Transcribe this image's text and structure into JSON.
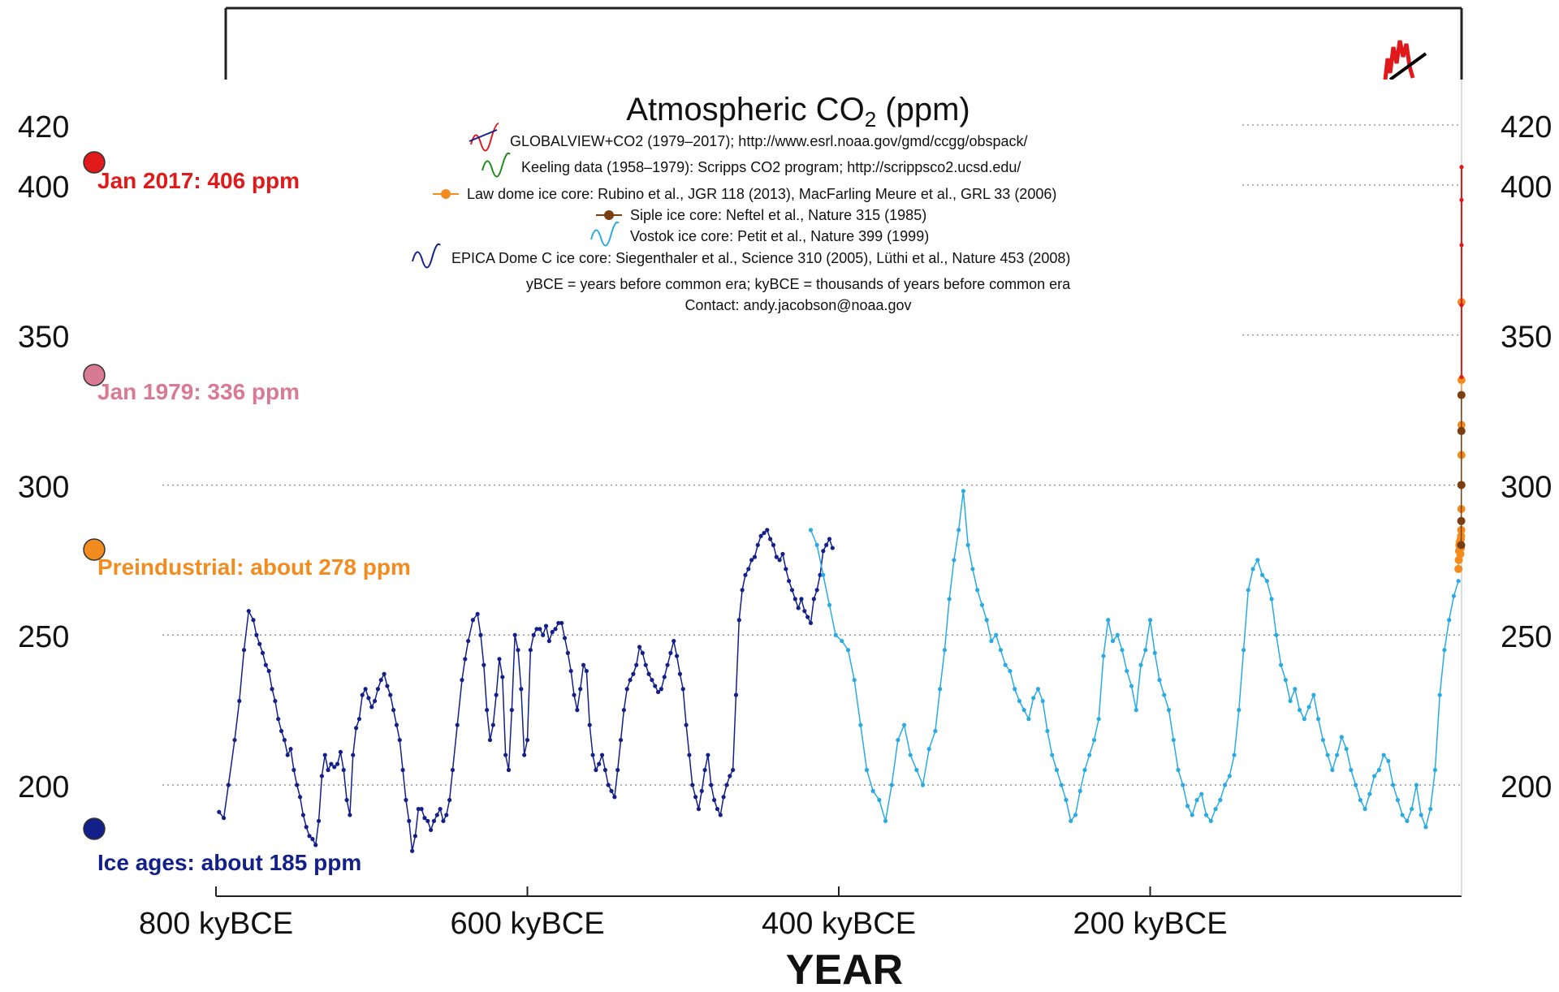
{
  "chart_data": {
    "type": "line",
    "title": "Atmospheric CO",
    "title_sub": "2",
    "title_unit": " (ppm)",
    "xlabel": "YEAR",
    "ylabel": "",
    "ylim": [
      175,
      420
    ],
    "xlim": [
      800,
      0
    ],
    "x_unit": "kyBCE",
    "y_ticks": [
      "420",
      "400",
      "350",
      "300",
      "250",
      "200"
    ],
    "y_tick_values": [
      420,
      400,
      350,
      300,
      250,
      200
    ],
    "gridlines": [
      420,
      400,
      350,
      300,
      250,
      200
    ],
    "x_ticks": [
      "800 kyBCE",
      "600 kyBCE",
      "400 kyBCE",
      "200 kyBCE"
    ],
    "x_tick_values": [
      800,
      600,
      400,
      200
    ],
    "grid": "dotted horizontal",
    "legend_placement": "top-center",
    "legend": [
      {
        "text": "GLOBALVIEW+CO2 (1979–2017); http://www.esrl.noaa.gov/gmd/ccgg/obspack/",
        "color": "#e0191b",
        "marker": "wave2"
      },
      {
        "text": "Keeling data (1958–1979): Scripps CO2 program; http://scrippsco2.ucsd.edu/",
        "color": "#1e8c1e",
        "marker": "wave"
      },
      {
        "text": "Law dome ice core:  Rubino et al., JGR 118 (2013), MacFarling Meure et al., GRL 33 (2006)",
        "color": "#f28c1f",
        "marker": "dot"
      },
      {
        "text": "Siple ice core:  Neftel et al., Nature 315 (1985)",
        "color": "#7a3e12",
        "marker": "dot"
      },
      {
        "text": "Vostok ice core:  Petit et al., Nature 399 (1999)",
        "color": "#29abe2",
        "marker": "wave"
      },
      {
        "text": "EPICA Dome C ice core:  Siegenthaler et al., Science 310 (2005), Lüthi et al., Nature 453 (2008)",
        "color": "#14208a",
        "marker": "wave"
      }
    ],
    "notes": [
      "yBCE = years before common era; kyBCE = thousands of years before common era",
      "Contact: andy.jacobson@noaa.gov"
    ],
    "annotations": [
      {
        "text": "Jan 2017: 406 ppm",
        "value": 406,
        "color": "#e0191b"
      },
      {
        "text": "Jan 1979: 336 ppm",
        "value": 336,
        "color": "#d97a93"
      },
      {
        "text": "Preindustrial: about 278 ppm",
        "value": 278,
        "color": "#f28c1f"
      },
      {
        "text": "Ice ages: about 185 ppm",
        "value": 185,
        "color": "#14208a"
      }
    ],
    "series": [
      {
        "name": "EPICA Dome C ice core",
        "color": "#14208a",
        "x": [
          798,
          795,
          792,
          788,
          785,
          782,
          779,
          776,
          774,
          772,
          770,
          768,
          766,
          764,
          762,
          760,
          758,
          756,
          754,
          752,
          750,
          748,
          746,
          744,
          742,
          740,
          738,
          736,
          734,
          732,
          730,
          728,
          726,
          724,
          722,
          720,
          718,
          716,
          714,
          712,
          710,
          708,
          706,
          704,
          702,
          700,
          698,
          696,
          694,
          692,
          690,
          688,
          686,
          684,
          682,
          680,
          678,
          676,
          674,
          672,
          670,
          668,
          666,
          664,
          662,
          660,
          658,
          656,
          654,
          652,
          650,
          648,
          645,
          642,
          640,
          638,
          635,
          632,
          630,
          628,
          626,
          624,
          622,
          620,
          618,
          616,
          614,
          612,
          610,
          608,
          606,
          604,
          602,
          600,
          598,
          596,
          594,
          592,
          590,
          588,
          586,
          584,
          582,
          580,
          578,
          576,
          574,
          572,
          570,
          568,
          566,
          564,
          562,
          560,
          558,
          556,
          554,
          552,
          550,
          548,
          546,
          544,
          542,
          540,
          538,
          536,
          534,
          532,
          530,
          528,
          526,
          524,
          522,
          520,
          518,
          516,
          514,
          512,
          510,
          508,
          506,
          504,
          502,
          500,
          498,
          496,
          494,
          492,
          490,
          488,
          486,
          484,
          482,
          480,
          478,
          476,
          474,
          472,
          470,
          468,
          466,
          464,
          462,
          460,
          458,
          456,
          454,
          452,
          450,
          448,
          446,
          444,
          442,
          440,
          438,
          436,
          434,
          432,
          430,
          428,
          426,
          424,
          422,
          420,
          418,
          416,
          414,
          412,
          410,
          408,
          406,
          404
        ],
        "y": [
          191,
          189,
          200,
          215,
          228,
          245,
          258,
          255,
          250,
          247,
          244,
          240,
          238,
          232,
          228,
          222,
          218,
          215,
          210,
          212,
          205,
          200,
          196,
          190,
          186,
          183,
          182,
          180,
          188,
          203,
          210,
          205,
          207,
          206,
          207,
          211,
          205,
          195,
          190,
          210,
          219,
          222,
          230,
          232,
          229,
          226,
          228,
          232,
          235,
          237,
          233,
          230,
          225,
          220,
          215,
          205,
          195,
          188,
          178,
          183,
          192,
          192,
          189,
          188,
          185,
          188,
          190,
          192,
          188,
          190,
          195,
          205,
          220,
          235,
          242,
          248,
          255,
          257,
          250,
          240,
          225,
          215,
          220,
          230,
          242,
          236,
          210,
          205,
          225,
          250,
          245,
          232,
          210,
          215,
          245,
          250,
          252,
          252,
          250,
          253,
          248,
          251,
          252,
          254,
          254,
          249,
          244,
          238,
          230,
          225,
          232,
          240,
          238,
          220,
          210,
          205,
          207,
          210,
          205,
          200,
          198,
          196,
          205,
          215,
          225,
          232,
          235,
          237,
          240,
          246,
          244,
          240,
          237,
          235,
          233,
          231,
          232,
          236,
          240,
          244,
          248,
          243,
          237,
          232,
          220,
          210,
          200,
          196,
          192,
          198,
          205,
          210,
          200,
          195,
          192,
          190,
          196,
          200,
          203,
          205,
          230,
          255,
          265,
          270,
          272,
          275,
          276,
          280,
          283,
          284,
          285,
          282,
          280,
          276,
          275,
          277,
          272,
          268,
          265,
          262,
          259,
          262,
          258,
          256,
          254,
          262,
          265,
          270,
          278,
          280,
          282,
          279
        ]
      },
      {
        "name": "Vostok ice core",
        "color": "#29abe2",
        "x": [
          418,
          414,
          410,
          406,
          402,
          398,
          394,
          390,
          386,
          382,
          378,
          374,
          370,
          366,
          362,
          358,
          354,
          350,
          346,
          342,
          338,
          335,
          332,
          329,
          326,
          323,
          320,
          317,
          314,
          311,
          308,
          305,
          302,
          299,
          296,
          293,
          290,
          287,
          284,
          281,
          278,
          275,
          272,
          269,
          266,
          263,
          260,
          257,
          254,
          251,
          248,
          245,
          242,
          239,
          236,
          233,
          230,
          227,
          224,
          221,
          218,
          215,
          212,
          209,
          206,
          203,
          200,
          197,
          194,
          191,
          188,
          185,
          182,
          179,
          176,
          173,
          170,
          167,
          164,
          161,
          158,
          155,
          152,
          149,
          146,
          143,
          140,
          137,
          134,
          131,
          128,
          125,
          122,
          119,
          116,
          113,
          110,
          107,
          104,
          101,
          98,
          95,
          92,
          89,
          86,
          83,
          80,
          77,
          74,
          71,
          68,
          65,
          62,
          59,
          56,
          53,
          50,
          47,
          44,
          41,
          38,
          35,
          32,
          29,
          26,
          23,
          20,
          17,
          14,
          11,
          8,
          5,
          2
        ],
        "y": [
          285,
          280,
          270,
          260,
          250,
          248,
          245,
          235,
          220,
          205,
          198,
          195,
          188,
          200,
          215,
          220,
          210,
          205,
          200,
          212,
          218,
          232,
          245,
          262,
          275,
          285,
          298,
          280,
          272,
          265,
          260,
          255,
          248,
          250,
          245,
          240,
          238,
          232,
          228,
          225,
          222,
          229,
          232,
          228,
          218,
          210,
          205,
          200,
          195,
          188,
          190,
          198,
          205,
          210,
          215,
          222,
          243,
          255,
          248,
          250,
          245,
          238,
          233,
          225,
          240,
          245,
          255,
          244,
          235,
          230,
          225,
          215,
          205,
          200,
          193,
          190,
          195,
          197,
          190,
          188,
          192,
          195,
          200,
          203,
          210,
          225,
          245,
          265,
          272,
          275,
          270,
          268,
          262,
          250,
          240,
          235,
          228,
          232,
          225,
          222,
          226,
          230,
          222,
          215,
          210,
          205,
          210,
          216,
          212,
          205,
          200,
          195,
          192,
          197,
          203,
          205,
          210,
          208,
          200,
          195,
          190,
          188,
          192,
          200,
          190,
          186,
          192,
          205,
          230,
          245,
          255,
          263,
          268
        ]
      },
      {
        "name": "Law dome ice core",
        "color": "#f28c1f",
        "x": [
          2,
          1.8,
          1.6,
          1.4,
          1.2,
          1.0,
          0.8,
          0.6,
          0.5,
          0.4,
          0.3,
          0.2,
          0.15,
          0.1,
          0.08,
          0.06,
          0.04,
          0.03
        ],
        "y": [
          272,
          275,
          278,
          280,
          281,
          279,
          277,
          280,
          282,
          279,
          283,
          285,
          292,
          300,
          310,
          320,
          335,
          361
        ]
      },
      {
        "name": "Siple ice core",
        "color": "#7a3e12",
        "x": [
          0.25,
          0.2,
          0.15,
          0.12,
          0.1
        ],
        "y": [
          280,
          288,
          300,
          318,
          330
        ]
      },
      {
        "name": "GLOBALVIEW+CO2",
        "color": "#e0191b",
        "x": [
          0.04,
          0.03,
          0.02,
          0.01,
          0.0
        ],
        "y": [
          336,
          360,
          380,
          395,
          406
        ]
      }
    ]
  }
}
